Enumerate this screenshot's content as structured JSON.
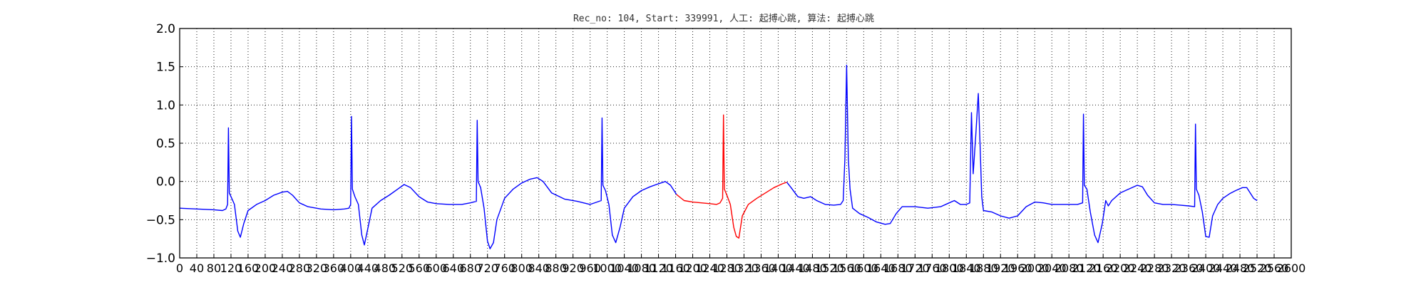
{
  "chart_data": {
    "type": "line",
    "title": "Rec_no: 104, Start: 339991, 人工: 起搏心跳, 算法: 起搏心跳",
    "xlabel": "",
    "ylabel": "",
    "xlim": [
      0,
      2600
    ],
    "ylim": [
      -1.0,
      2.0
    ],
    "grid": true,
    "yticks": [
      -1.0,
      -0.5,
      0.0,
      0.5,
      1.0,
      1.5,
      2.0
    ],
    "ytick_labels": [
      "−1.0",
      "−0.5",
      "0.0",
      "0.5",
      "1.0",
      "1.5",
      "2.0"
    ],
    "xticks": [
      0,
      40,
      80,
      120,
      160,
      200,
      240,
      280,
      320,
      360,
      400,
      440,
      480,
      520,
      560,
      600,
      640,
      680,
      720,
      760,
      800,
      840,
      880,
      920,
      960,
      1000,
      1040,
      1080,
      1120,
      1160,
      1200,
      1240,
      1280,
      1320,
      1360,
      1400,
      1440,
      1480,
      1520,
      1560,
      1600,
      1640,
      1680,
      1720,
      1760,
      1800,
      1840,
      1880,
      1920,
      1960,
      2000,
      2040,
      2080,
      2120,
      2160,
      2200,
      2240,
      2280,
      2320,
      2360,
      2400,
      2440,
      2480,
      2520,
      2560,
      2600
    ],
    "series": [
      {
        "color": "#0000ff",
        "points": [
          [
            0,
            -0.35
          ],
          [
            40,
            -0.36
          ],
          [
            80,
            -0.37
          ],
          [
            100,
            -0.38
          ],
          [
            108,
            -0.36
          ],
          [
            112,
            -0.3
          ],
          [
            114,
            0.7
          ],
          [
            116,
            -0.15
          ],
          [
            120,
            -0.2
          ],
          [
            128,
            -0.3
          ],
          [
            136,
            -0.65
          ],
          [
            142,
            -0.73
          ],
          [
            150,
            -0.55
          ],
          [
            160,
            -0.38
          ],
          [
            180,
            -0.3
          ],
          [
            200,
            -0.25
          ],
          [
            220,
            -0.18
          ],
          [
            240,
            -0.14
          ],
          [
            252,
            -0.13
          ],
          [
            264,
            -0.18
          ],
          [
            280,
            -0.28
          ],
          [
            300,
            -0.33
          ],
          [
            330,
            -0.36
          ],
          [
            360,
            -0.37
          ],
          [
            385,
            -0.36
          ],
          [
            396,
            -0.35
          ],
          [
            400,
            -0.3
          ],
          [
            402,
            0.85
          ],
          [
            404,
            -0.1
          ],
          [
            410,
            -0.2
          ],
          [
            418,
            -0.3
          ],
          [
            426,
            -0.7
          ],
          [
            432,
            -0.83
          ],
          [
            440,
            -0.62
          ],
          [
            450,
            -0.35
          ],
          [
            470,
            -0.25
          ],
          [
            490,
            -0.18
          ],
          [
            510,
            -0.1
          ],
          [
            525,
            -0.04
          ],
          [
            540,
            -0.08
          ],
          [
            560,
            -0.2
          ],
          [
            580,
            -0.27
          ],
          [
            600,
            -0.29
          ],
          [
            630,
            -0.3
          ],
          [
            660,
            -0.3
          ],
          [
            680,
            -0.28
          ],
          [
            694,
            -0.26
          ],
          [
            696,
            0.8
          ],
          [
            698,
            0.0
          ],
          [
            704,
            -0.08
          ],
          [
            712,
            -0.35
          ],
          [
            720,
            -0.78
          ],
          [
            726,
            -0.88
          ],
          [
            734,
            -0.8
          ],
          [
            742,
            -0.5
          ],
          [
            760,
            -0.22
          ],
          [
            780,
            -0.1
          ],
          [
            800,
            -0.02
          ],
          [
            820,
            0.03
          ],
          [
            836,
            0.05
          ],
          [
            850,
            0.0
          ],
          [
            870,
            -0.15
          ],
          [
            900,
            -0.23
          ],
          [
            930,
            -0.26
          ],
          [
            960,
            -0.3
          ],
          [
            976,
            -0.27
          ],
          [
            986,
            -0.25
          ],
          [
            988,
            0.83
          ],
          [
            990,
            -0.05
          ],
          [
            996,
            -0.12
          ],
          [
            1004,
            -0.3
          ],
          [
            1012,
            -0.7
          ],
          [
            1020,
            -0.8
          ],
          [
            1030,
            -0.6
          ],
          [
            1040,
            -0.35
          ],
          [
            1060,
            -0.2
          ],
          [
            1080,
            -0.12
          ],
          [
            1100,
            -0.07
          ],
          [
            1120,
            -0.03
          ],
          [
            1136,
            0.0
          ],
          [
            1148,
            -0.05
          ],
          [
            1162,
            -0.17
          ]
        ]
      },
      {
        "color": "#ff0000",
        "points": [
          [
            1162,
            -0.17
          ],
          [
            1180,
            -0.25
          ],
          [
            1200,
            -0.27
          ],
          [
            1220,
            -0.28
          ],
          [
            1240,
            -0.29
          ],
          [
            1256,
            -0.3
          ],
          [
            1264,
            -0.28
          ],
          [
            1270,
            -0.22
          ],
          [
            1272,
            0.87
          ],
          [
            1274,
            -0.1
          ],
          [
            1280,
            -0.18
          ],
          [
            1288,
            -0.3
          ],
          [
            1296,
            -0.6
          ],
          [
            1302,
            -0.72
          ],
          [
            1308,
            -0.74
          ],
          [
            1316,
            -0.45
          ],
          [
            1330,
            -0.3
          ],
          [
            1350,
            -0.22
          ],
          [
            1370,
            -0.15
          ],
          [
            1390,
            -0.08
          ],
          [
            1410,
            -0.03
          ],
          [
            1420,
            -0.01
          ]
        ]
      },
      {
        "color": "#0000ff",
        "points": [
          [
            1420,
            -0.01
          ],
          [
            1430,
            -0.08
          ],
          [
            1446,
            -0.2
          ],
          [
            1460,
            -0.22
          ],
          [
            1476,
            -0.2
          ],
          [
            1490,
            -0.25
          ],
          [
            1510,
            -0.3
          ],
          [
            1530,
            -0.31
          ],
          [
            1546,
            -0.3
          ],
          [
            1552,
            -0.25
          ],
          [
            1556,
            0.3
          ],
          [
            1560,
            1.52
          ],
          [
            1564,
            0.3
          ],
          [
            1568,
            -0.1
          ],
          [
            1574,
            -0.35
          ],
          [
            1590,
            -0.42
          ],
          [
            1610,
            -0.47
          ],
          [
            1630,
            -0.53
          ],
          [
            1650,
            -0.56
          ],
          [
            1662,
            -0.55
          ],
          [
            1676,
            -0.42
          ],
          [
            1690,
            -0.33
          ],
          [
            1720,
            -0.33
          ],
          [
            1750,
            -0.35
          ],
          [
            1780,
            -0.33
          ],
          [
            1800,
            -0.28
          ],
          [
            1812,
            -0.25
          ],
          [
            1826,
            -0.3
          ],
          [
            1840,
            -0.3
          ],
          [
            1848,
            -0.28
          ],
          [
            1852,
            0.9
          ],
          [
            1856,
            0.1
          ],
          [
            1862,
            0.6
          ],
          [
            1868,
            1.15
          ],
          [
            1872,
            0.5
          ],
          [
            1876,
            -0.2
          ],
          [
            1880,
            -0.38
          ],
          [
            1900,
            -0.4
          ],
          [
            1920,
            -0.45
          ],
          [
            1940,
            -0.48
          ],
          [
            1960,
            -0.45
          ],
          [
            1980,
            -0.33
          ],
          [
            2000,
            -0.27
          ],
          [
            2020,
            -0.28
          ],
          [
            2040,
            -0.3
          ],
          [
            2060,
            -0.3
          ],
          [
            2080,
            -0.3
          ],
          [
            2100,
            -0.3
          ],
          [
            2112,
            -0.28
          ],
          [
            2114,
            0.88
          ],
          [
            2116,
            -0.05
          ],
          [
            2122,
            -0.1
          ],
          [
            2130,
            -0.4
          ],
          [
            2140,
            -0.7
          ],
          [
            2148,
            -0.8
          ],
          [
            2158,
            -0.55
          ],
          [
            2166,
            -0.25
          ],
          [
            2172,
            -0.32
          ],
          [
            2180,
            -0.25
          ],
          [
            2200,
            -0.15
          ],
          [
            2220,
            -0.1
          ],
          [
            2240,
            -0.05
          ],
          [
            2252,
            -0.07
          ],
          [
            2264,
            -0.18
          ],
          [
            2280,
            -0.28
          ],
          [
            2300,
            -0.3
          ],
          [
            2320,
            -0.3
          ],
          [
            2340,
            -0.31
          ],
          [
            2360,
            -0.32
          ],
          [
            2374,
            -0.33
          ],
          [
            2376,
            0.75
          ],
          [
            2378,
            -0.1
          ],
          [
            2384,
            -0.18
          ],
          [
            2392,
            -0.4
          ],
          [
            2400,
            -0.72
          ],
          [
            2408,
            -0.73
          ],
          [
            2416,
            -0.45
          ],
          [
            2428,
            -0.3
          ],
          [
            2440,
            -0.22
          ],
          [
            2456,
            -0.16
          ],
          [
            2470,
            -0.12
          ],
          [
            2486,
            -0.08
          ],
          [
            2496,
            -0.08
          ],
          [
            2504,
            -0.15
          ],
          [
            2512,
            -0.22
          ],
          [
            2520,
            -0.25
          ]
        ]
      }
    ]
  }
}
